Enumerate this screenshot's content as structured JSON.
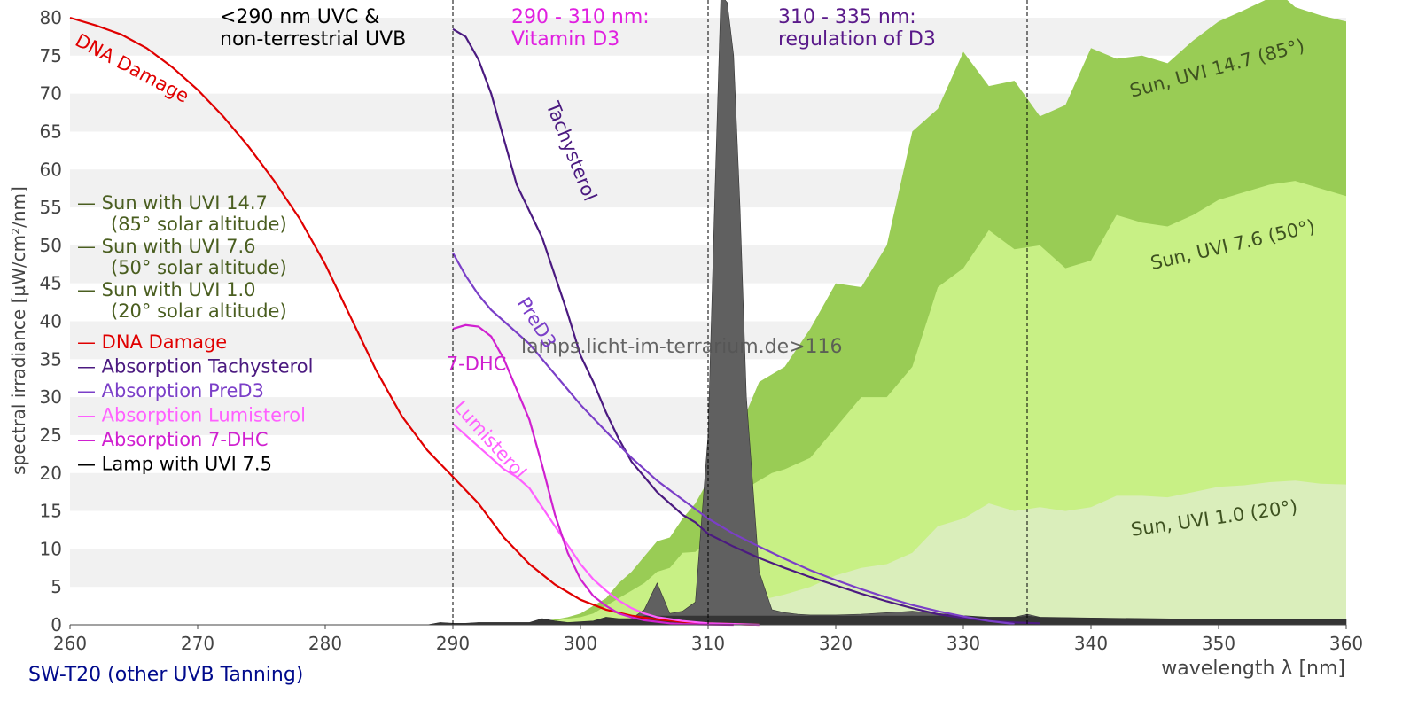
{
  "chart_data": {
    "type": "area",
    "title": "",
    "xlabel": "wavelength λ [nm]",
    "ylabel": "spectral irradiance [µW/cm²/nm]",
    "xlim": [
      260,
      360
    ],
    "ylim": [
      0,
      80
    ],
    "x_ticks": [
      260,
      270,
      280,
      290,
      300,
      310,
      320,
      330,
      340,
      350,
      360
    ],
    "y_ticks": [
      0,
      5,
      10,
      15,
      20,
      25,
      30,
      35,
      40,
      45,
      50,
      55,
      60,
      65,
      70,
      75,
      80
    ],
    "footer": "SW-T20 (other UVB Tanning)",
    "watermark": "lamps.licht-im-terrarium.de>116",
    "regions": [
      {
        "x": 290,
        "label_line1": "<290 nm UVC &",
        "label_line2": "non-terrestrial UVB",
        "color": "#000000"
      },
      {
        "x": 310,
        "label_line1": "290 - 310 nm:",
        "label_line2": "Vitamin D3",
        "color": "#e020e0"
      },
      {
        "x": 335,
        "label_line1": "310 - 335 nm:",
        "label_line2": "regulation of D3",
        "color": "#5a1a8a"
      }
    ],
    "legend": [
      {
        "text": "— Sun with UVI 14.7",
        "sub": "(85° solar altitude)",
        "color": "#4a5e20"
      },
      {
        "text": "— Sun with UVI 7.6",
        "sub": "(50° solar altitude)",
        "color": "#4a5e20"
      },
      {
        "text": "— Sun with UVI 1.0",
        "sub": "(20° solar altitude)",
        "color": "#4a5e20"
      },
      {
        "text": "— DNA Damage",
        "color": "#e00000"
      },
      {
        "text": "— Absorption Tachysterol",
        "color": "#4b1a80"
      },
      {
        "text": "— Absorption PreD3",
        "color": "#7b3fc8"
      },
      {
        "text": "— Absorption Lumisterol",
        "color": "#ff60ff"
      },
      {
        "text": "— Absorption 7-DHC",
        "color": "#d020d0"
      },
      {
        "text": "— Lamp with UVI 7.5",
        "color": "#000000"
      }
    ],
    "areas": [
      {
        "name": "Sun, UVI 14.7 (85°)",
        "color": "#99cc55",
        "x": [
          296,
          297,
          298,
          299,
          300,
          301,
          302,
          303,
          304,
          305,
          306,
          307,
          308,
          309,
          310,
          311,
          312,
          313,
          314,
          315,
          316,
          318,
          320,
          322,
          324,
          326,
          328,
          330,
          332,
          334,
          336,
          338,
          340,
          342,
          344,
          346,
          348,
          350,
          352,
          354,
          355,
          356,
          358,
          360
        ],
        "y": [
          0,
          0.5,
          0.7,
          1,
          1.5,
          2.5,
          3.5,
          5.5,
          7,
          9,
          11,
          11.5,
          14,
          16,
          19,
          22,
          25,
          28,
          32,
          33,
          34,
          39,
          45,
          44.5,
          50,
          65,
          68,
          75.5,
          71,
          71.7,
          67,
          68.5,
          76,
          74.6,
          75,
          74,
          77,
          79.5,
          81,
          82.6,
          82.9,
          81.4,
          80.3,
          79.5
        ]
      },
      {
        "name": "Sun, UVI 7.6 (50°)",
        "color": "#c8f085",
        "x": [
          296,
          297,
          298,
          299,
          300,
          301,
          302,
          303,
          304,
          305,
          306,
          307,
          308,
          309,
          310,
          311,
          312,
          313,
          314,
          315,
          316,
          318,
          320,
          322,
          324,
          326,
          328,
          330,
          332,
          334,
          336,
          338,
          340,
          342,
          344,
          346,
          348,
          350,
          352,
          354,
          356,
          358,
          360
        ],
        "y": [
          0,
          0.3,
          0.5,
          0.8,
          1,
          1.5,
          2.5,
          3.5,
          4.5,
          5.5,
          7,
          7.5,
          9.5,
          9.6,
          11,
          14,
          17,
          18,
          19,
          20,
          20.5,
          22,
          26,
          30,
          30,
          34,
          44.5,
          47,
          52,
          49.5,
          50,
          47,
          48,
          54,
          53,
          52.5,
          54,
          56,
          57,
          58,
          58.5,
          57.5,
          56.5
        ]
      },
      {
        "name": "Sun, UVI 1.0 (20°)",
        "color": "#daeebb",
        "x": [
          300,
          302,
          304,
          306,
          308,
          310,
          312,
          314,
          316,
          318,
          320,
          322,
          324,
          326,
          328,
          330,
          332,
          334,
          336,
          338,
          340,
          342,
          344,
          346,
          348,
          350,
          352,
          354,
          356,
          358,
          360
        ],
        "y": [
          0,
          0.2,
          0.4,
          0.8,
          1.2,
          1.8,
          2.5,
          3.2,
          4,
          5,
          6.5,
          7.5,
          8,
          9.5,
          13,
          14,
          16,
          15,
          15.5,
          15,
          15.5,
          17,
          17,
          16.8,
          17.5,
          18.2,
          18.4,
          18.8,
          19,
          18.6,
          18.5
        ]
      },
      {
        "name": "Lamp with UVI 7.5",
        "color": "#606060",
        "x": [
          288,
          289,
          290,
          291,
          292,
          293,
          294,
          295,
          296,
          297,
          298,
          299,
          300,
          301,
          302,
          303,
          304,
          305,
          306,
          307,
          308,
          309,
          310,
          310.5,
          311,
          311.5,
          312,
          312.5,
          313,
          314,
          315,
          316,
          317,
          318,
          320,
          322,
          324,
          326,
          328,
          330,
          332,
          334,
          335,
          336,
          340,
          345,
          350,
          355,
          360
        ],
        "y": [
          0,
          0.3,
          0.2,
          0.2,
          0.3,
          0.3,
          0.3,
          0.3,
          0.3,
          0.8,
          0.5,
          0.3,
          0.4,
          0.5,
          1,
          0.8,
          0.8,
          2,
          5.5,
          1.5,
          1.8,
          3,
          25,
          55,
          83,
          82,
          75,
          55,
          30,
          7,
          2,
          1.6,
          1.4,
          1.3,
          1.3,
          1.4,
          1.6,
          1.8,
          1.5,
          1.2,
          1,
          1,
          1.4,
          1,
          0.9,
          0.8,
          0.7,
          0.7,
          0.7
        ]
      }
    ],
    "series": [
      {
        "name": "DNA Damage",
        "color": "#e00000",
        "x": [
          260,
          262,
          264,
          266,
          268,
          270,
          272,
          274,
          276,
          278,
          280,
          282,
          284,
          286,
          288,
          290,
          292,
          294,
          296,
          298,
          300,
          302,
          304,
          306,
          308,
          310,
          312,
          314
        ],
        "y": [
          80,
          79,
          77.8,
          76,
          73.5,
          70.5,
          67,
          63,
          58.5,
          53.5,
          47.5,
          40.5,
          33.5,
          27.5,
          23,
          19.5,
          16,
          11.5,
          8,
          5.3,
          3.3,
          2,
          1.2,
          0.7,
          0.4,
          0.2,
          0.1,
          0
        ]
      },
      {
        "name": "Absorption Tachysterol",
        "color": "#4b1a80",
        "x": [
          290,
          291,
          292,
          293,
          294,
          295,
          296,
          297,
          298,
          299,
          300,
          301,
          302,
          303,
          304,
          305,
          306,
          307,
          308,
          309,
          310,
          312,
          314,
          316,
          318,
          320,
          322,
          324,
          326,
          328,
          330,
          332,
          334,
          336
        ],
        "y": [
          78.5,
          77.5,
          74.5,
          70,
          64,
          58,
          54.5,
          51,
          46,
          41,
          35.5,
          32,
          28,
          24.5,
          21.5,
          19.5,
          17.5,
          16,
          14.5,
          13.5,
          12,
          10.3,
          8.8,
          7.5,
          6.3,
          5.2,
          4.1,
          3.1,
          2.2,
          1.4,
          0.9,
          0.5,
          0.3,
          0.2
        ]
      },
      {
        "name": "Absorption PreD3",
        "color": "#7b3fc8",
        "x": [
          290,
          291,
          292,
          293,
          294,
          296,
          298,
          300,
          302,
          304,
          306,
          308,
          310,
          312,
          314,
          316,
          318,
          320,
          322,
          324,
          326,
          328,
          330,
          332,
          334
        ],
        "y": [
          49,
          46,
          43.5,
          41.5,
          40,
          37,
          33,
          29,
          25.5,
          22,
          19,
          16.5,
          14,
          12,
          10.3,
          8.7,
          7.2,
          5.9,
          4.7,
          3.6,
          2.6,
          1.8,
          1.1,
          0.5,
          0.1
        ]
      },
      {
        "name": "Absorption Lumisterol",
        "color": "#ff60ff",
        "x": [
          290,
          291,
          292,
          293,
          294,
          295,
          296,
          297,
          298,
          299,
          300,
          301,
          302,
          303,
          304,
          305,
          306,
          308,
          310,
          312,
          314
        ],
        "y": [
          26.5,
          25,
          23.5,
          22,
          20.5,
          19.5,
          18,
          15.5,
          13,
          10.5,
          8,
          6,
          4.5,
          3.2,
          2.2,
          1.5,
          1,
          0.5,
          0.2,
          0.1,
          0
        ]
      },
      {
        "name": "Absorption 7-DHC",
        "color": "#d020d0",
        "x": [
          290,
          291,
          292,
          293,
          294,
          295,
          296,
          297,
          298,
          299,
          300,
          301,
          302,
          303,
          304,
          305,
          306,
          307,
          308,
          310,
          312
        ],
        "y": [
          39,
          39.5,
          39.3,
          38,
          35,
          31,
          27,
          21,
          14.5,
          9.5,
          6,
          3.8,
          2.5,
          1.5,
          1,
          0.6,
          0.4,
          0.2,
          0.1,
          0.05,
          0
        ]
      }
    ],
    "annotations": [
      {
        "text": "DNA Damage",
        "x": 260.3,
        "y": 76.5,
        "rotate": 28,
        "color": "#e00000"
      },
      {
        "text": "Tachysterol",
        "x": 297.3,
        "y": 68.5,
        "rotate": 68,
        "color": "#4b1a80"
      },
      {
        "text": "PreD3",
        "x": 295,
        "y": 42.5,
        "rotate": 58,
        "color": "#7b3fc8"
      },
      {
        "text": "7-DHC",
        "x": 289.5,
        "y": 33.6,
        "rotate": 0,
        "color": "#d020d0"
      },
      {
        "text": "Lumisterol",
        "x": 290,
        "y": 28.6,
        "rotate": 48,
        "color": "#ff60ff"
      },
      {
        "text": "Sun, UVI 14.7 (85°)",
        "x": 343.2,
        "y": 69.5,
        "rotate": -15,
        "color": "#3e5220"
      },
      {
        "text": "Sun, UVI 7.6 (50°)",
        "x": 344.8,
        "y": 46.8,
        "rotate": -13,
        "color": "#3e5220"
      },
      {
        "text": "Sun, UVI 1.0 (20°)",
        "x": 343.2,
        "y": 11.7,
        "rotate": -8,
        "color": "#3e5220"
      }
    ]
  }
}
